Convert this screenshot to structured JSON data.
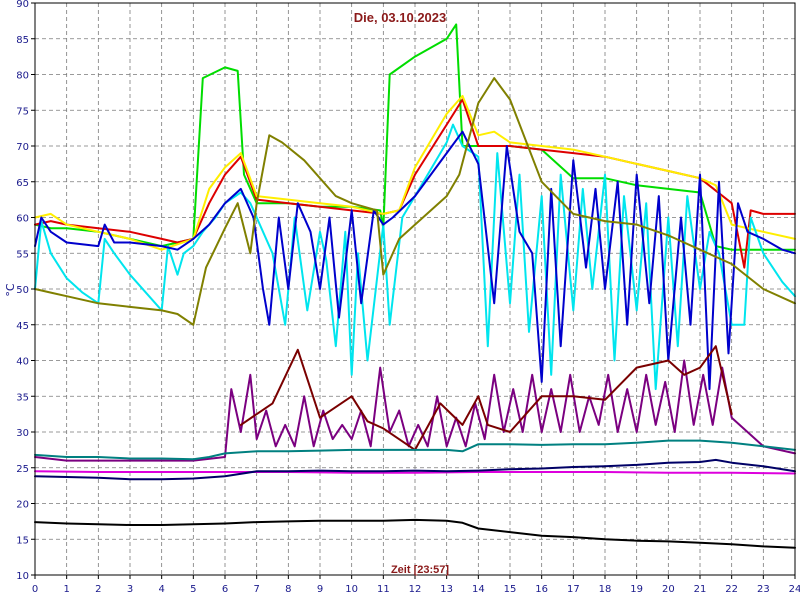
{
  "chart_data": {
    "type": "line",
    "title": "Die, 03.10.2023",
    "xlabel": "Zeit [23:57]",
    "ylabel": "°C",
    "xlim": [
      0,
      24
    ],
    "ylim": [
      10,
      90
    ],
    "xticks": [
      0,
      1,
      2,
      3,
      4,
      5,
      6,
      7,
      8,
      9,
      10,
      11,
      12,
      13,
      14,
      15,
      16,
      17,
      18,
      19,
      20,
      21,
      22,
      23,
      24
    ],
    "yticks": [
      10,
      15,
      20,
      25,
      30,
      35,
      40,
      45,
      50,
      55,
      60,
      65,
      70,
      75,
      80,
      85,
      90
    ],
    "grid": true,
    "legend": "none",
    "series": [
      {
        "color": "#00dd00",
        "x": [
          0,
          0.5,
          1,
          2,
          3,
          4,
          5,
          5.3,
          6,
          6.4,
          6.6,
          7,
          8,
          9,
          10,
          10.9,
          11,
          11.2,
          12,
          13,
          13.3,
          13.5,
          14,
          14.5,
          15,
          16,
          17,
          18,
          19,
          20,
          21,
          21.5,
          22,
          23,
          23.5,
          24
        ],
        "y": [
          59,
          58.5,
          58.5,
          58,
          57,
          56,
          57,
          79.5,
          81,
          80.5,
          66,
          62,
          62,
          61.5,
          61.5,
          61,
          58.5,
          80,
          82.5,
          85,
          87,
          70,
          70,
          70,
          70,
          69.5,
          65.5,
          65.5,
          64.5,
          64,
          63.5,
          56,
          55.5,
          55.5,
          55.5,
          55.5
        ]
      },
      {
        "color": "#dd0000",
        "x": [
          0,
          0.5,
          1,
          2,
          3,
          4,
          4.5,
          5,
          5.5,
          6,
          6.5,
          7,
          8,
          9,
          10,
          11,
          11.5,
          12,
          13,
          13.5,
          14,
          15,
          16,
          17,
          18,
          19,
          20,
          21,
          22,
          22.4,
          22.6,
          23,
          24
        ],
        "y": [
          59,
          59.5,
          59,
          58.5,
          58,
          57,
          56.5,
          57,
          62,
          66,
          68.5,
          62.5,
          62,
          61.5,
          61,
          60.5,
          61,
          66,
          73,
          76.5,
          70,
          70,
          69.5,
          69,
          68.5,
          67.5,
          66.5,
          65.5,
          62,
          53,
          61,
          60.5,
          60.5
        ]
      },
      {
        "color": "#ffee00",
        "x": [
          0,
          0.5,
          1,
          2,
          3,
          4,
          5,
          5.5,
          6,
          6.5,
          7,
          8,
          9,
          10,
          11,
          11.5,
          12,
          13,
          13.5,
          14,
          14.5,
          15,
          16,
          17,
          18,
          19,
          20,
          21,
          21.5,
          22,
          23,
          24
        ],
        "y": [
          60,
          60.5,
          59,
          58,
          57,
          55.5,
          57,
          64,
          67,
          69,
          63,
          62.5,
          62,
          61.5,
          60.5,
          61,
          67,
          74.5,
          77,
          71.5,
          72,
          70.5,
          70,
          69.5,
          68.5,
          67.5,
          66.5,
          65.5,
          64.5,
          59,
          58,
          57
        ]
      },
      {
        "color": "#00e5ee",
        "x": [
          0,
          0.2,
          0.5,
          1,
          1.5,
          2,
          2.2,
          2.5,
          3,
          4,
          4.2,
          4.5,
          4.7,
          5,
          5.3,
          5.7,
          6,
          6.5,
          6.8,
          7,
          7.5,
          7.9,
          8.2,
          8.6,
          9,
          9.2,
          9.5,
          9.8,
          10,
          10.2,
          10.5,
          11,
          11.2,
          11.6,
          12,
          13,
          13.2,
          13.5,
          14,
          14.3,
          14.6,
          15,
          15.3,
          15.6,
          16,
          16.3,
          16.6,
          17,
          17.3,
          17.6,
          18,
          18.3,
          18.6,
          19,
          19.3,
          19.6,
          20,
          20.3,
          20.6,
          21,
          21.3,
          21.6,
          22,
          22.4,
          22.6,
          23,
          23.6,
          24
        ],
        "y": [
          50,
          59.5,
          55,
          51.5,
          49.5,
          48,
          57,
          55,
          52,
          47,
          56,
          52,
          55,
          56,
          58,
          60,
          62,
          63.5,
          62,
          60,
          55,
          45,
          60,
          47,
          58,
          54,
          42,
          58,
          38,
          55,
          40,
          59,
          45,
          60,
          63,
          70.5,
          73,
          70,
          68.5,
          42,
          69,
          48,
          66,
          44,
          63,
          38,
          66,
          47,
          64,
          50,
          66,
          40,
          63,
          47,
          62,
          36,
          60,
          42,
          63,
          50,
          58,
          55,
          45,
          45,
          60,
          55,
          51,
          49
        ]
      },
      {
        "color": "#0000cc",
        "x": [
          0,
          0.2,
          0.5,
          1,
          2,
          2.2,
          2.5,
          3,
          4,
          4.5,
          5,
          5.5,
          6,
          6.5,
          6.9,
          7.2,
          7.4,
          7.7,
          8,
          8.3,
          8.7,
          9,
          9.3,
          9.6,
          10,
          10.3,
          10.7,
          11,
          11.3,
          12,
          13,
          13.5,
          14,
          14.5,
          14.9,
          15.3,
          15.7,
          16,
          16.3,
          16.6,
          17,
          17.4,
          17.7,
          18,
          18.4,
          18.7,
          19,
          19.4,
          19.7,
          20,
          20.4,
          20.7,
          21,
          21.3,
          21.6,
          21.9,
          22.2,
          22.5,
          23,
          23.6,
          24
        ],
        "y": [
          56,
          60,
          58,
          56.5,
          56,
          59,
          56.5,
          56.5,
          56,
          55.5,
          57,
          59,
          62,
          64,
          60,
          50,
          45,
          60,
          50,
          62,
          58,
          50,
          60,
          46,
          61,
          48,
          61,
          59,
          60,
          63,
          69,
          72,
          67.5,
          48,
          70,
          58,
          55,
          37,
          64,
          42,
          68,
          53,
          64,
          50,
          65,
          45,
          66,
          48,
          63,
          40,
          60,
          45,
          66,
          36,
          65,
          41,
          62,
          58,
          57,
          55.5,
          55
        ]
      },
      {
        "color": "#808000",
        "x": [
          0,
          0.5,
          1,
          2,
          3,
          4,
          4.5,
          5,
          5.4,
          6,
          6.4,
          6.8,
          7,
          7.4,
          7.8,
          8.5,
          9.5,
          10,
          10.8,
          11,
          11.5,
          12,
          13,
          13.4,
          14,
          14.5,
          15,
          16,
          17,
          18,
          19,
          20,
          21,
          22,
          23,
          24
        ],
        "y": [
          50,
          49.5,
          49,
          48,
          47.5,
          47,
          46.5,
          45,
          53,
          58.5,
          62,
          55,
          62,
          71.5,
          70.5,
          68,
          63,
          62,
          61,
          52,
          57,
          59,
          63,
          66,
          76,
          79.5,
          76.5,
          65,
          60.5,
          59.5,
          59,
          57.5,
          55.5,
          53.5,
          50,
          48
        ]
      },
      {
        "color": "#7b0080",
        "x": [
          0,
          1,
          2,
          3,
          4,
          5,
          6,
          6.2,
          6.5,
          6.8,
          7,
          7.3,
          7.6,
          7.9,
          8.2,
          8.5,
          8.8,
          9.1,
          9.4,
          9.7,
          10,
          10.3,
          10.6,
          10.9,
          11.2,
          11.5,
          11.8,
          12.1,
          12.4,
          12.7,
          13,
          13.3,
          13.6,
          13.9,
          14.2,
          14.5,
          14.8,
          15.1,
          15.4,
          15.7,
          16,
          16.3,
          16.6,
          16.9,
          17.2,
          17.5,
          17.8,
          18.1,
          18.4,
          18.7,
          19,
          19.3,
          19.6,
          19.9,
          20.2,
          20.5,
          20.8,
          21.1,
          21.4,
          21.7,
          22,
          22.5,
          23,
          24
        ],
        "y": [
          26.5,
          26,
          26,
          26,
          26,
          26,
          26.5,
          36,
          30,
          38,
          29,
          33,
          28,
          31,
          28,
          35,
          28,
          33,
          29,
          31,
          29,
          33,
          28,
          39,
          30,
          33,
          28,
          31,
          28,
          35,
          28,
          32,
          28,
          34,
          29,
          38,
          30,
          36,
          30,
          38,
          30,
          36,
          30,
          38,
          30,
          35,
          31,
          38,
          30,
          36,
          30,
          38,
          31,
          37,
          30,
          40,
          31,
          38,
          31,
          39,
          32,
          30,
          28,
          27
        ]
      },
      {
        "color": "#7a0000",
        "x": [
          6.5,
          7.5,
          8.3,
          9,
          10,
          10.5,
          11,
          12,
          12.8,
          13.5,
          14,
          14.3,
          15,
          16,
          17,
          18,
          19,
          20,
          20.5,
          21,
          21.5,
          22
        ],
        "y": [
          31,
          34,
          41.5,
          32,
          35,
          31.5,
          30.5,
          27.5,
          34,
          31,
          35,
          31,
          30,
          35,
          35,
          34.5,
          39,
          40,
          38,
          39,
          42,
          32.5
        ]
      },
      {
        "color": "#008080",
        "x": [
          0,
          1,
          2,
          3,
          4,
          5,
          5.5,
          6,
          7,
          8,
          9,
          10,
          11,
          12,
          13,
          13.5,
          14,
          15,
          16,
          17,
          18,
          19,
          20,
          21,
          22,
          23,
          24
        ],
        "y": [
          26.8,
          26.5,
          26.5,
          26.3,
          26.3,
          26.2,
          26.5,
          27,
          27.3,
          27.3,
          27.4,
          27.5,
          27.5,
          27.5,
          27.5,
          27.3,
          28.3,
          28.3,
          28.2,
          28.3,
          28.3,
          28.5,
          28.8,
          28.8,
          28.5,
          28,
          27.5
        ]
      },
      {
        "color": "#dd00dd",
        "x": [
          0,
          2,
          4,
          6,
          8,
          10,
          12,
          14,
          16,
          18,
          20,
          22,
          24
        ],
        "y": [
          24.5,
          24.4,
          24.4,
          24.4,
          24.4,
          24.3,
          24.3,
          24.4,
          24.4,
          24.4,
          24.3,
          24.3,
          24.2
        ]
      },
      {
        "color": "#000066",
        "x": [
          0,
          1,
          2,
          3,
          4,
          5,
          6,
          7,
          8,
          9,
          10,
          11,
          12,
          13,
          14,
          15,
          16,
          17,
          18,
          19,
          20,
          21,
          21.5,
          22,
          23,
          24
        ],
        "y": [
          23.8,
          23.7,
          23.6,
          23.4,
          23.4,
          23.5,
          23.8,
          24.5,
          24.5,
          24.6,
          24.5,
          24.5,
          24.6,
          24.5,
          24.6,
          24.8,
          24.9,
          25.1,
          25.2,
          25.4,
          25.7,
          25.8,
          26.1,
          25.7,
          25.2,
          24.5
        ]
      },
      {
        "color": "#000000",
        "x": [
          0,
          1,
          2,
          3,
          4,
          5,
          6,
          7,
          8,
          9,
          10,
          11,
          12,
          13,
          13.5,
          14,
          15,
          16,
          17,
          18,
          19,
          20,
          21,
          22,
          23,
          24
        ],
        "y": [
          17.4,
          17.2,
          17.1,
          17,
          17,
          17.1,
          17.2,
          17.4,
          17.5,
          17.6,
          17.6,
          17.6,
          17.7,
          17.6,
          17.3,
          16.5,
          16,
          15.5,
          15.3,
          15,
          14.8,
          14.7,
          14.5,
          14.3,
          14,
          13.8
        ]
      }
    ]
  }
}
